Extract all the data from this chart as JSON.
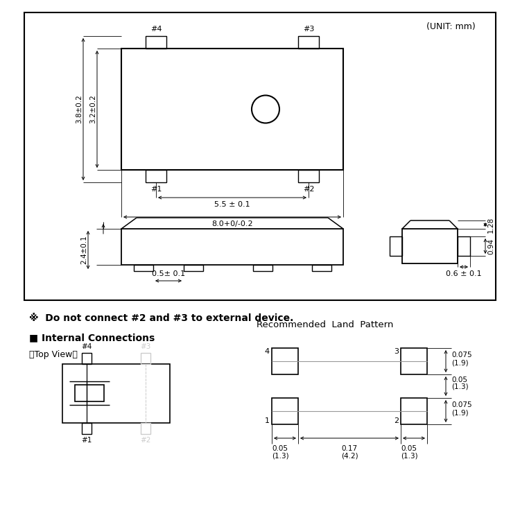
{
  "bg_color": "#ffffff",
  "unit_text": "(UNIT: mm)",
  "warning_text": "※  Do not connect #2 and #3 to external device.",
  "internal_conn_title": "■ Internal Connections",
  "top_view_label": "〈Top View〉",
  "rec_land_title": "Recommended  Land  Pattern",
  "dim_38": "3.8±0.2",
  "dim_32": "3.2±0.2",
  "dim_55": "5.5 ± 0.1",
  "dim_80": "8.0+0/-0.2",
  "dim_24": "2.4±0.1",
  "dim_05": "0.5± 0.1",
  "dim_128": "1.28",
  "dim_094": "0.94",
  "dim_06": "0.6 ± 0.1",
  "land_075a": "0.075",
  "land_19a": "(1.9)",
  "land_005": "0.05",
  "land_13a": "(1.3)",
  "land_075b": "0.075",
  "land_19b": "(1.9)",
  "land_h005a": "0.05",
  "land_h13a": "(1.3)",
  "land_h017": "0.17",
  "land_h42": "(4.2)",
  "land_h005b": "0.05",
  "land_h13b": "(1.3)"
}
